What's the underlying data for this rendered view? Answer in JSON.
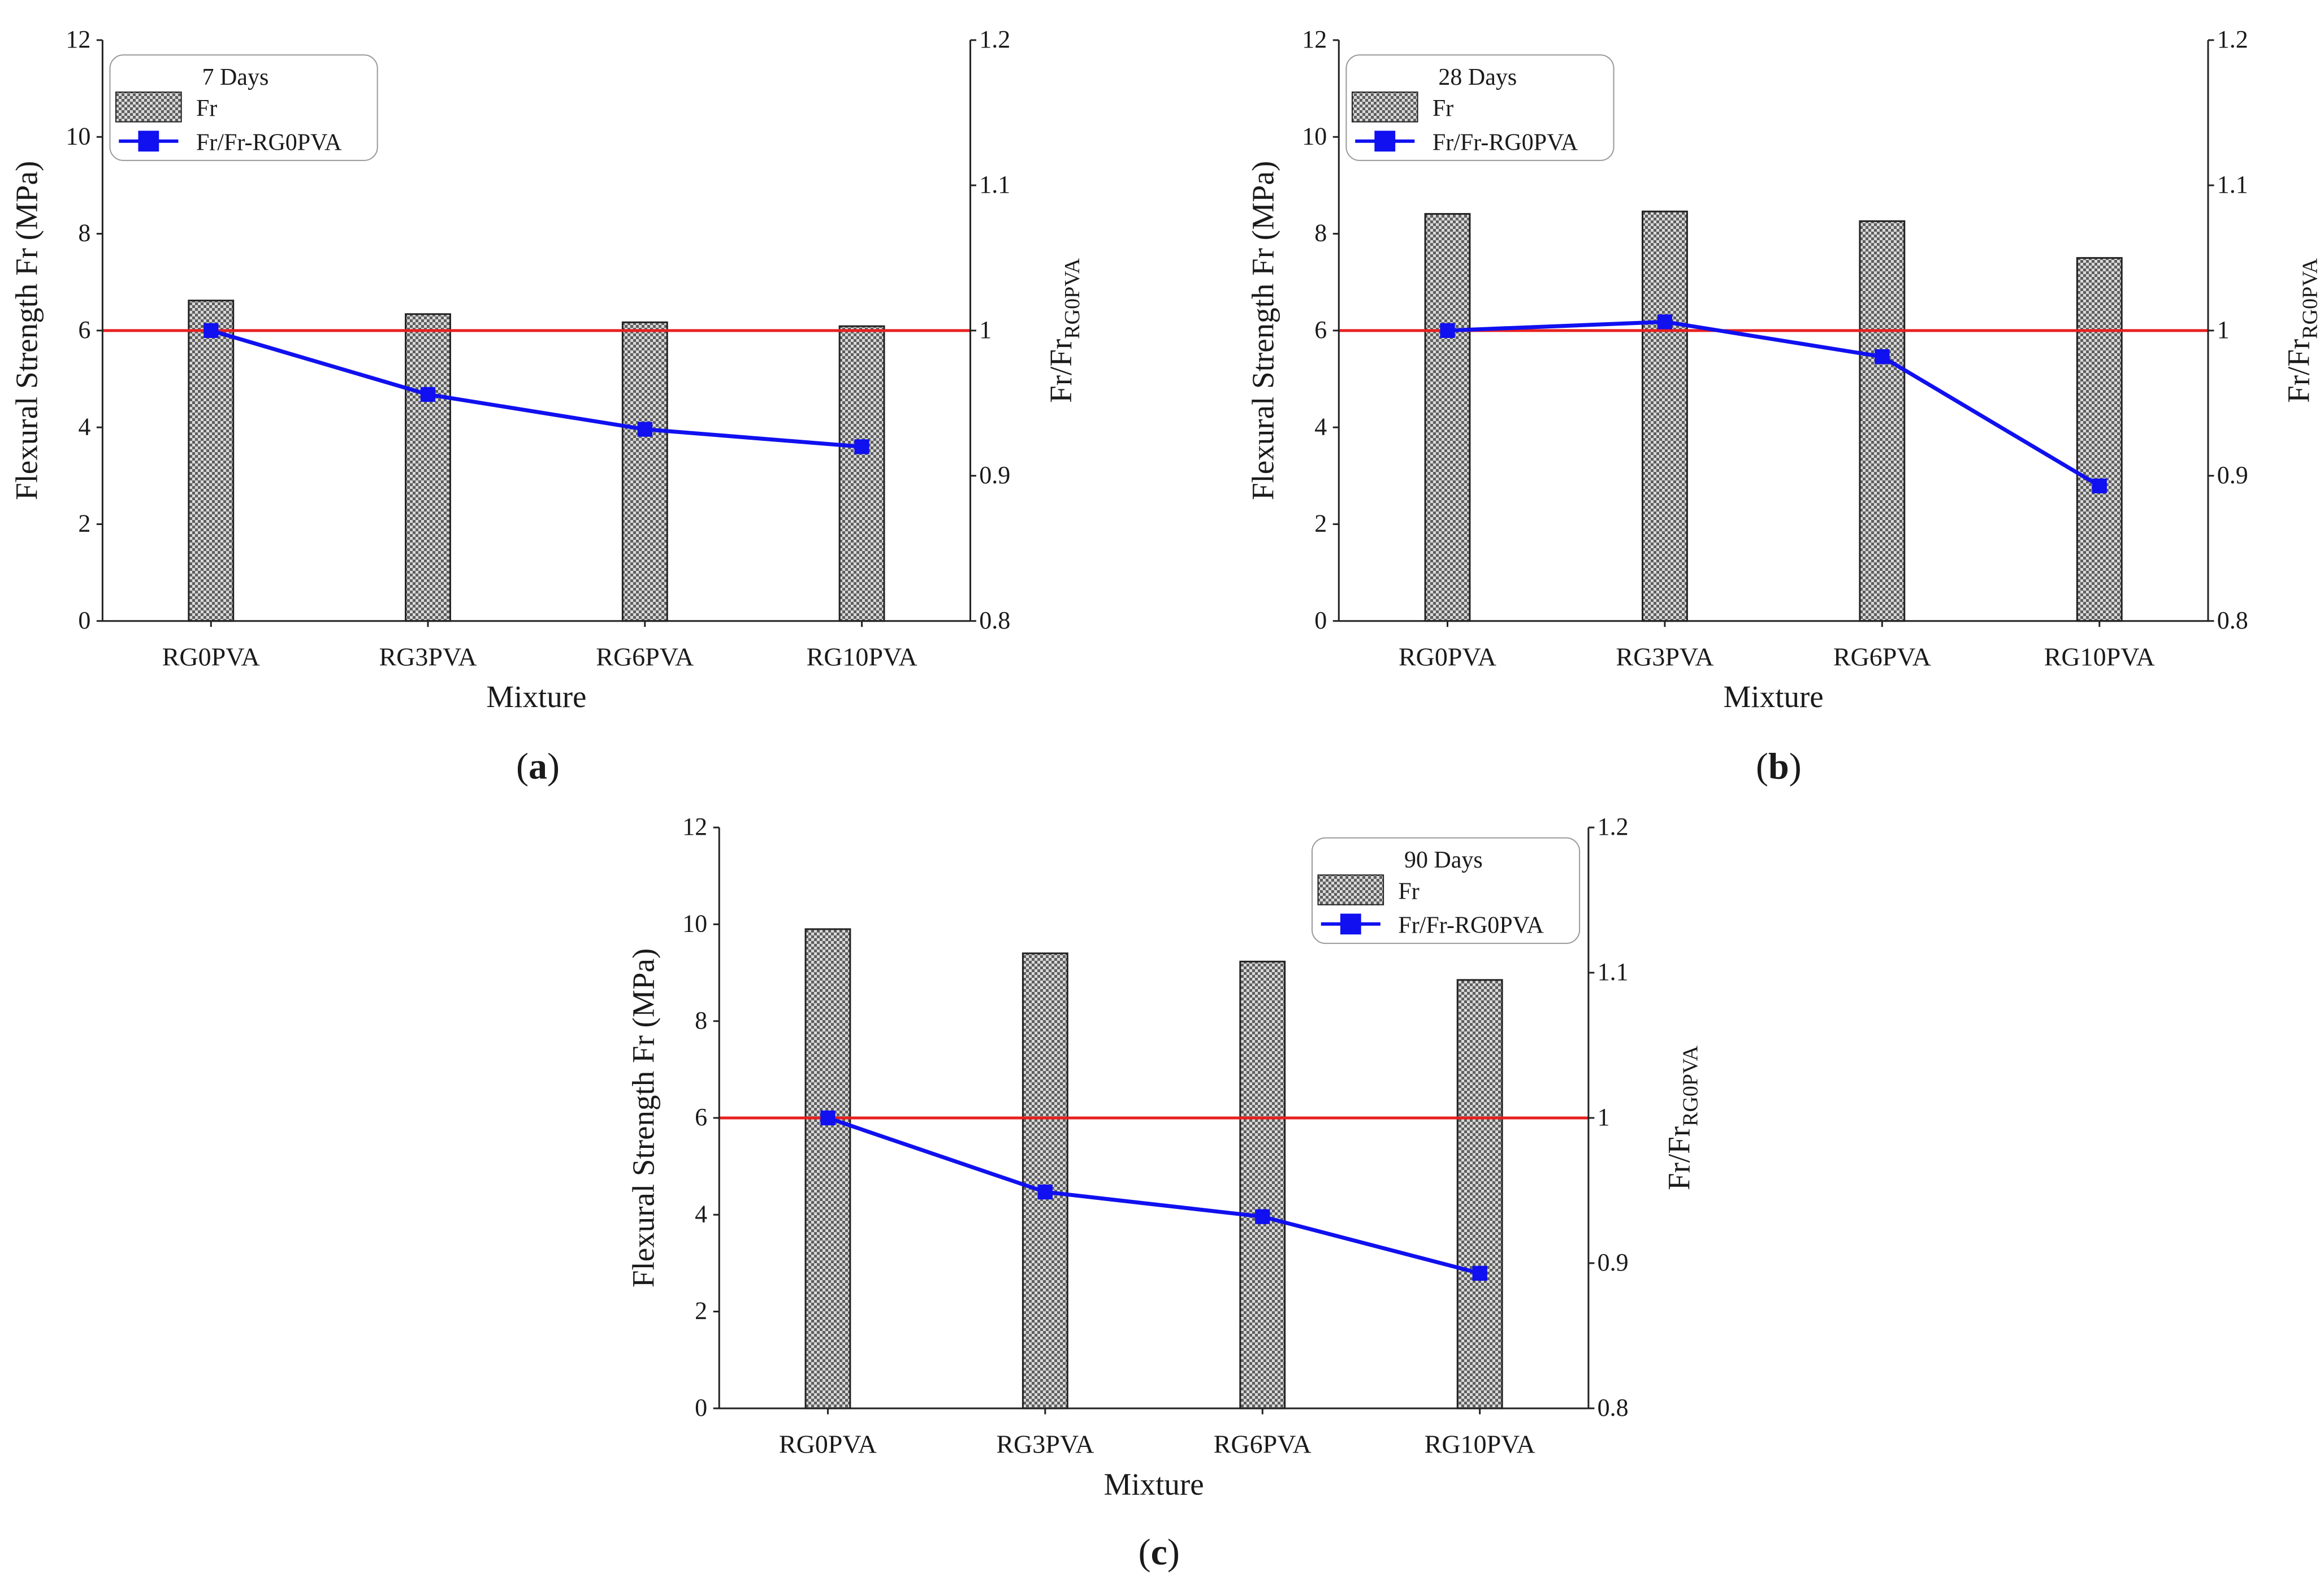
{
  "figure": {
    "panel_labels": [
      {
        "open": "(",
        "letter": "a",
        "close": ")"
      },
      {
        "open": "(",
        "letter": "b",
        "close": ")"
      },
      {
        "open": "(",
        "letter": "c",
        "close": ")"
      }
    ]
  },
  "chart_data": [
    {
      "type": "bar",
      "panel": "a",
      "legend_title": "7 Days",
      "legend_position": "top-left",
      "categories": [
        "RG0PVA",
        "RG3PVA",
        "RG6PVA",
        "RG10PVA"
      ],
      "xlabel": "Mixture",
      "ylabel": "Flexural Strength Fr (MPa)",
      "y2label": {
        "main": "Fr/Fr",
        "sub": "RG0PVA"
      },
      "ylim": [
        0,
        12
      ],
      "yticks": [
        "0",
        "2",
        "4",
        "6",
        "8",
        "10",
        "12"
      ],
      "y2lim": [
        0.8,
        1.2
      ],
      "y2ticks": [
        "0.8",
        "0.9",
        "1",
        "1.1",
        "1.2"
      ],
      "reference_line": {
        "axis": "y2",
        "value": 1.0,
        "color": "#e8201f"
      },
      "series": [
        {
          "name": "Fr",
          "type": "bar",
          "axis": "y",
          "values": [
            6.62,
            6.34,
            6.17,
            6.09
          ]
        },
        {
          "name": "Fr/Fr-RG0PVA",
          "type": "line",
          "axis": "y2",
          "color": "#1010f0",
          "values": [
            1.0,
            0.956,
            0.932,
            0.92
          ]
        }
      ]
    },
    {
      "type": "bar",
      "panel": "b",
      "legend_title": "28 Days",
      "legend_position": "top-left",
      "categories": [
        "RG0PVA",
        "RG3PVA",
        "RG6PVA",
        "RG10PVA"
      ],
      "xlabel": "Mixture",
      "ylabel": "Flexural Strength Fr (MPa)",
      "y2label": {
        "main": "Fr/Fr",
        "sub": "RG0PVA"
      },
      "ylim": [
        0,
        12
      ],
      "yticks": [
        "0",
        "2",
        "4",
        "6",
        "8",
        "10",
        "12"
      ],
      "y2lim": [
        0.8,
        1.2
      ],
      "y2ticks": [
        "0.8",
        "0.9",
        "1",
        "1.1",
        "1.2"
      ],
      "reference_line": {
        "axis": "y2",
        "value": 1.0,
        "color": "#e8201f"
      },
      "series": [
        {
          "name": "Fr",
          "type": "bar",
          "axis": "y",
          "values": [
            8.41,
            8.46,
            8.26,
            7.5
          ]
        },
        {
          "name": "Fr/Fr-RG0PVA",
          "type": "line",
          "axis": "y2",
          "color": "#1010f0",
          "values": [
            1.0,
            1.006,
            0.982,
            0.893
          ]
        }
      ]
    },
    {
      "type": "bar",
      "panel": "c",
      "legend_title": "90 Days",
      "legend_position": "top-right",
      "categories": [
        "RG0PVA",
        "RG3PVA",
        "RG6PVA",
        "RG10PVA"
      ],
      "xlabel": "Mixture",
      "ylabel": "Flexural Strength Fr (MPa)",
      "y2label": {
        "main": "Fr/Fr",
        "sub": "RG0PVA"
      },
      "ylim": [
        0,
        12
      ],
      "yticks": [
        "0",
        "2",
        "4",
        "6",
        "8",
        "10",
        "12"
      ],
      "y2lim": [
        0.8,
        1.2
      ],
      "y2ticks": [
        "0.8",
        "0.9",
        "1",
        "1.1",
        "1.2"
      ],
      "reference_line": {
        "axis": "y2",
        "value": 1.0,
        "color": "#e8201f"
      },
      "series": [
        {
          "name": "Fr",
          "type": "bar",
          "axis": "y",
          "values": [
            9.9,
            9.4,
            9.23,
            8.85
          ]
        },
        {
          "name": "Fr/Fr-RG0PVA",
          "type": "line",
          "axis": "y2",
          "color": "#1010f0",
          "values": [
            1.0,
            0.949,
            0.932,
            0.893
          ]
        }
      ]
    }
  ]
}
